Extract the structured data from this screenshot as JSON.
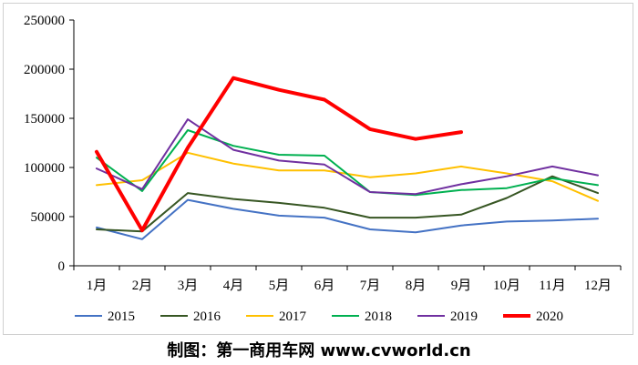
{
  "chart_data": {
    "type": "line",
    "title": "",
    "xlabel": "",
    "ylabel": "",
    "categories": [
      "1月",
      "2月",
      "3月",
      "4月",
      "5月",
      "6月",
      "7月",
      "8月",
      "9月",
      "10月",
      "11月",
      "12月"
    ],
    "ylim": [
      0,
      250000
    ],
    "yticks": [
      0,
      50000,
      100000,
      150000,
      200000,
      250000
    ],
    "ytick_labels": [
      "0",
      "50000",
      "100000",
      "150000",
      "200000",
      "250000"
    ],
    "grid": false,
    "legend_position": "bottom",
    "series": [
      {
        "name": "2015",
        "color": "#4472c4",
        "width": 2,
        "values": [
          39000,
          27000,
          67000,
          58000,
          51000,
          49000,
          37000,
          34000,
          41000,
          45000,
          46000,
          48000
        ]
      },
      {
        "name": "2016",
        "color": "#375623",
        "width": 2,
        "values": [
          37000,
          35000,
          74000,
          68000,
          64000,
          59000,
          49000,
          49000,
          52000,
          69000,
          91000,
          74000
        ]
      },
      {
        "name": "2017",
        "color": "#ffc000",
        "width": 2,
        "values": [
          82000,
          87000,
          115000,
          104000,
          97000,
          97000,
          90000,
          94000,
          101000,
          94000,
          86000,
          66000
        ]
      },
      {
        "name": "2018",
        "color": "#00b050",
        "width": 2,
        "values": [
          110000,
          76000,
          138000,
          122000,
          113000,
          112000,
          75000,
          72000,
          77000,
          79000,
          89000,
          82000
        ]
      },
      {
        "name": "2019",
        "color": "#7030a0",
        "width": 2,
        "values": [
          99000,
          78000,
          149000,
          118000,
          107000,
          103000,
          75000,
          73000,
          83000,
          91000,
          101000,
          92000
        ]
      },
      {
        "name": "2020",
        "color": "#ff0000",
        "width": 4,
        "values": [
          116000,
          36000,
          120000,
          191000,
          179000,
          169000,
          139000,
          129000,
          136000,
          null,
          null,
          null
        ]
      }
    ]
  },
  "caption": "制图：第一商用车网 www.cvworld.cn"
}
